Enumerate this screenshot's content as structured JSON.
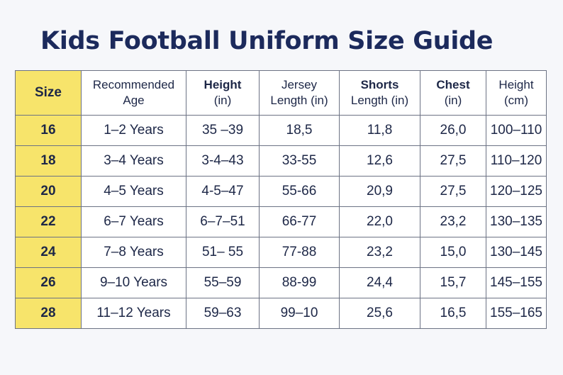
{
  "title": "Kids Football Uniform Size Guide",
  "accent_color": "#f7e46b",
  "title_color": "#1c2a5c",
  "header": {
    "size": "Size",
    "age": [
      "Recommended",
      "Age"
    ],
    "height_in": [
      "Height",
      "(in)"
    ],
    "jersey": [
      "Jersey",
      "Length (in)"
    ],
    "shorts": [
      "Shorts",
      "Length (in)"
    ],
    "chest": [
      "Chest",
      "(in)"
    ],
    "height_cm": [
      "Height",
      "(cm)"
    ]
  },
  "rows": [
    [
      "16",
      "1–2 Years",
      "35 –39",
      "18,5",
      "11,8",
      "26,0",
      "100–110"
    ],
    [
      "18",
      "3–4 Years",
      "3-4–43",
      "33-55",
      "12,6",
      "27,5",
      "110–120"
    ],
    [
      "20",
      "4–5 Years",
      "4-5–47",
      "55-66",
      "20,9",
      "27,5",
      "120–125"
    ],
    [
      "22",
      "6–7 Years",
      "6–7–51",
      "66-77",
      "22,0",
      "23,2",
      "130–135"
    ],
    [
      "24",
      "7–8 Years",
      "51– 55",
      "77-88",
      "23,2",
      "15,0",
      "130–145"
    ],
    [
      "26",
      "9–10 Years",
      "55–59",
      "88-99",
      "24,4",
      "15,7",
      "145–155"
    ],
    [
      "28",
      "11–12 Years",
      "59–63",
      "99–10",
      "25,6",
      "16,5",
      "155–165"
    ]
  ]
}
